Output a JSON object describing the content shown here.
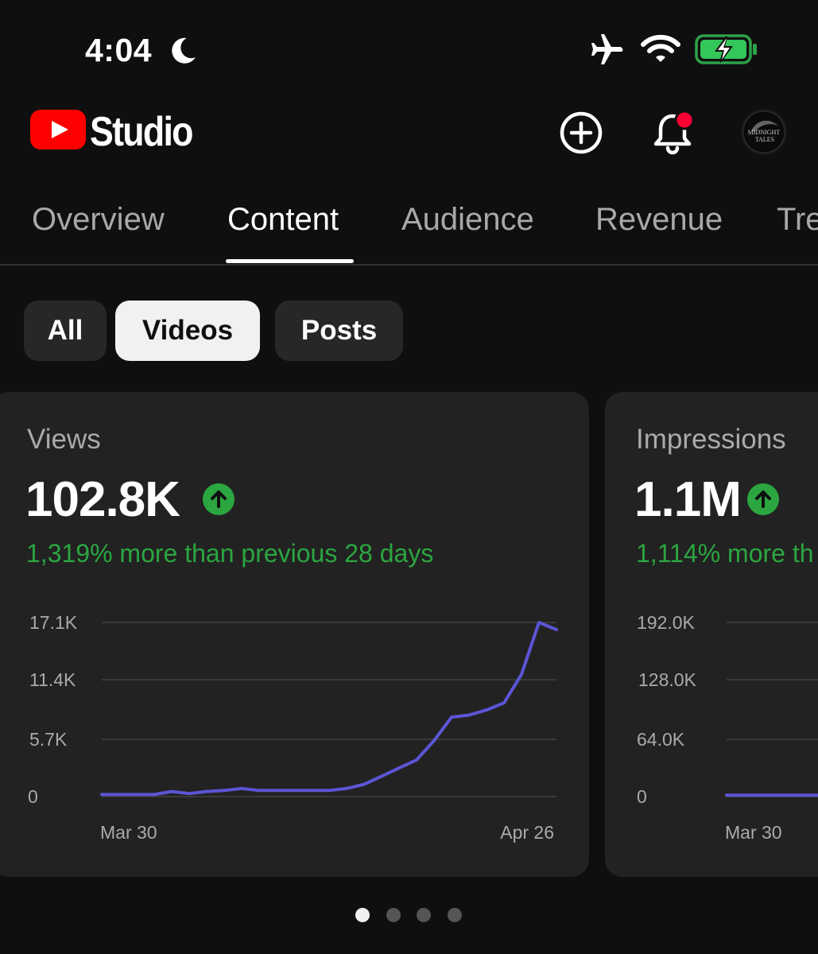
{
  "status_bar": {
    "time": "4:04",
    "icons": [
      "moon-icon",
      "airplane-icon",
      "wifi-icon",
      "battery-charging-icon"
    ],
    "battery_color": "#34c759"
  },
  "header": {
    "app_name": "Studio",
    "brand_color": "#ff0000",
    "notification_dot_color": "#ff0033",
    "avatar_text": "MIDNIGHT TALES"
  },
  "tabs": [
    {
      "label": "Overview",
      "active": false
    },
    {
      "label": "Content",
      "active": true
    },
    {
      "label": "Audience",
      "active": false
    },
    {
      "label": "Revenue",
      "active": false
    },
    {
      "label": "Tre",
      "active": false
    }
  ],
  "chips": [
    {
      "label": "All",
      "selected": false
    },
    {
      "label": "Videos",
      "selected": true
    },
    {
      "label": "Posts",
      "selected": false
    }
  ],
  "cards": [
    {
      "label": "Views",
      "value": "102.8K",
      "change": "1,319% more than previous 28 days",
      "trend": "up"
    },
    {
      "label": "Impressions",
      "value": "1.1M",
      "change": "1,114% more th",
      "trend": "up"
    }
  ],
  "chart_data": [
    {
      "type": "line",
      "title": "Views",
      "x_start_label": "Mar 30",
      "x_end_label": "Apr 26",
      "y_ticks": [
        "17.1K",
        "11.4K",
        "5.7K",
        "0"
      ],
      "ylim": [
        0,
        17100
      ],
      "line_color": "#5b55d6",
      "values": [
        200,
        200,
        200,
        200,
        500,
        300,
        500,
        600,
        800,
        600,
        600,
        600,
        600,
        600,
        800,
        1200,
        2000,
        2800,
        3600,
        5500,
        7800,
        8000,
        8500,
        9200,
        12000,
        17100,
        16400
      ]
    },
    {
      "type": "line",
      "title": "Impressions",
      "x_start_label": "Mar 30",
      "x_end_label": "",
      "y_ticks": [
        "192.0K",
        "128.0K",
        "64.0K",
        "0"
      ],
      "ylim": [
        0,
        192000
      ],
      "line_color": "#5b55d6",
      "values": [
        1500,
        1500,
        1500,
        1500,
        1500
      ]
    }
  ],
  "pagination": {
    "count": 4,
    "active_index": 0
  }
}
